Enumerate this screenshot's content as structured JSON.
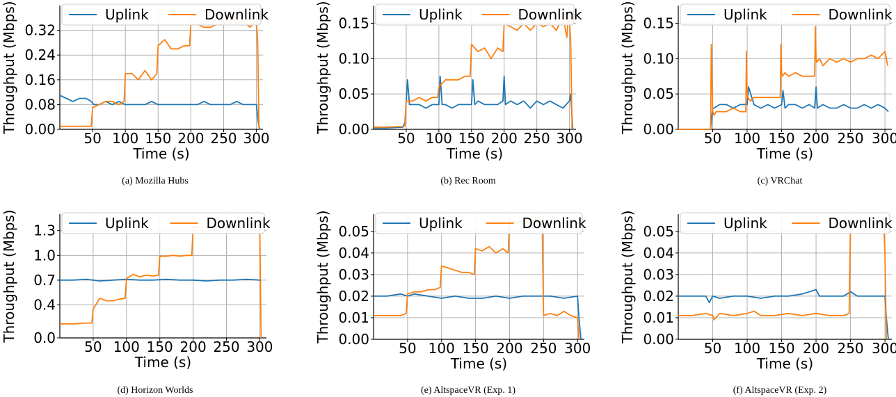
{
  "figure": {
    "colors": {
      "uplink": "#1f77b4",
      "downlink": "#ff7f0e",
      "grid": "#b0b0b0"
    }
  },
  "chart_data": [
    {
      "type": "line",
      "caption": "(a) Mozilla Hubs",
      "xlabel": "Time (s)",
      "ylabel": "Throughput (Mbps)",
      "xlim": [
        0,
        310
      ],
      "ylim": [
        0,
        0.4
      ],
      "xticks": [
        "50",
        "100",
        "150",
        "200",
        "250",
        "300"
      ],
      "xtick_values": [
        50,
        100,
        150,
        200,
        250,
        300
      ],
      "yticks": [
        "0.00",
        "0.08",
        "0.16",
        "0.24",
        "0.32"
      ],
      "ytick_values": [
        0,
        0.08,
        0.16,
        0.24,
        0.32
      ],
      "grid": true,
      "legend": "top",
      "series": [
        {
          "name": "Uplink",
          "key": "uplink",
          "x": [
            0,
            10,
            20,
            30,
            40,
            48,
            52,
            60,
            70,
            80,
            90,
            100,
            110,
            120,
            130,
            140,
            150,
            160,
            170,
            180,
            190,
            200,
            210,
            220,
            230,
            240,
            250,
            260,
            270,
            280,
            290,
            300,
            303,
            305
          ],
          "y": [
            0.11,
            0.1,
            0.09,
            0.1,
            0.1,
            0.09,
            0.08,
            0.08,
            0.09,
            0.08,
            0.09,
            0.08,
            0.08,
            0.08,
            0.08,
            0.09,
            0.08,
            0.08,
            0.08,
            0.08,
            0.08,
            0.08,
            0.08,
            0.09,
            0.08,
            0.08,
            0.08,
            0.08,
            0.09,
            0.08,
            0.08,
            0.08,
            0.02,
            0.0
          ]
        },
        {
          "name": "Downlink",
          "key": "downlink",
          "x": [
            0,
            20,
            40,
            48,
            50,
            60,
            70,
            80,
            90,
            98,
            100,
            110,
            120,
            130,
            140,
            148,
            150,
            160,
            170,
            180,
            190,
            198,
            200,
            210,
            220,
            230,
            240,
            250,
            260,
            270,
            280,
            290,
            300,
            302,
            304
          ],
          "y": [
            0.01,
            0.01,
            0.01,
            0.01,
            0.07,
            0.08,
            0.09,
            0.09,
            0.08,
            0.09,
            0.18,
            0.18,
            0.16,
            0.19,
            0.16,
            0.18,
            0.27,
            0.29,
            0.26,
            0.26,
            0.27,
            0.27,
            0.34,
            0.34,
            0.33,
            0.33,
            0.34,
            0.34,
            0.37,
            0.34,
            0.35,
            0.33,
            0.35,
            0.28,
            0.0
          ]
        }
      ]
    },
    {
      "type": "line",
      "caption": "(b) Rec Room",
      "xlabel": "Time (s)",
      "ylabel": "Throughput (Mbps)",
      "xlim": [
        0,
        310
      ],
      "ylim": [
        0,
        0.175
      ],
      "xticks": [
        "50",
        "100",
        "150",
        "200",
        "250",
        "300"
      ],
      "xtick_values": [
        50,
        100,
        150,
        200,
        250,
        300
      ],
      "yticks": [
        "0.00",
        "0.05",
        "0.10",
        "0.15"
      ],
      "ytick_values": [
        0,
        0.05,
        0.1,
        0.15
      ],
      "grid": true,
      "legend": "top",
      "series": [
        {
          "name": "Uplink",
          "key": "uplink",
          "x": [
            0,
            20,
            45,
            48,
            50,
            52,
            55,
            60,
            70,
            80,
            90,
            100,
            102,
            105,
            110,
            120,
            130,
            140,
            150,
            152,
            155,
            160,
            170,
            180,
            190,
            198,
            200,
            202,
            210,
            220,
            230,
            240,
            250,
            260,
            270,
            280,
            290,
            300,
            302,
            305
          ],
          "y": [
            0.002,
            0.002,
            0.003,
            0.01,
            0.04,
            0.07,
            0.035,
            0.035,
            0.035,
            0.03,
            0.035,
            0.035,
            0.075,
            0.035,
            0.035,
            0.03,
            0.035,
            0.035,
            0.035,
            0.07,
            0.035,
            0.04,
            0.035,
            0.035,
            0.035,
            0.04,
            0.075,
            0.035,
            0.04,
            0.035,
            0.04,
            0.03,
            0.04,
            0.035,
            0.04,
            0.035,
            0.03,
            0.04,
            0.05,
            0.0
          ]
        },
        {
          "name": "Downlink",
          "key": "downlink",
          "x": [
            0,
            20,
            45,
            48,
            50,
            60,
            70,
            80,
            90,
            98,
            100,
            110,
            120,
            130,
            140,
            148,
            150,
            160,
            170,
            180,
            190,
            198,
            200,
            210,
            220,
            230,
            240,
            250,
            260,
            270,
            280,
            290,
            296,
            298,
            300,
            302,
            304
          ],
          "y": [
            0.003,
            0.003,
            0.004,
            0.005,
            0.04,
            0.04,
            0.045,
            0.04,
            0.045,
            0.045,
            0.06,
            0.07,
            0.07,
            0.07,
            0.075,
            0.075,
            0.12,
            0.11,
            0.115,
            0.1,
            0.115,
            0.11,
            0.15,
            0.145,
            0.14,
            0.15,
            0.14,
            0.15,
            0.145,
            0.15,
            0.14,
            0.16,
            0.13,
            0.16,
            0.155,
            0.12,
            0.0
          ]
        }
      ]
    },
    {
      "type": "line",
      "caption": "(c) VRChat",
      "xlabel": "Time (s)",
      "ylabel": "Throughput (Mbps)",
      "xlim": [
        0,
        310
      ],
      "ylim": [
        0,
        0.175
      ],
      "xticks": [
        "50",
        "100",
        "150",
        "200",
        "250",
        "300"
      ],
      "xtick_values": [
        50,
        100,
        150,
        200,
        250,
        300
      ],
      "yticks": [
        "0.00",
        "0.05",
        "0.10",
        "0.15"
      ],
      "ytick_values": [
        0,
        0.05,
        0.1,
        0.15
      ],
      "grid": true,
      "legend": "top",
      "series": [
        {
          "name": "Uplink",
          "key": "uplink",
          "x": [
            0,
            20,
            40,
            47,
            50,
            52,
            60,
            70,
            80,
            90,
            100,
            102,
            110,
            120,
            130,
            140,
            150,
            152,
            155,
            160,
            170,
            180,
            190,
            198,
            200,
            202,
            210,
            220,
            230,
            240,
            250,
            260,
            270,
            280,
            290,
            300,
            305
          ],
          "y": [
            0.0,
            0.0,
            0.0,
            0.0,
            0.03,
            0.03,
            0.035,
            0.035,
            0.03,
            0.035,
            0.035,
            0.06,
            0.035,
            0.03,
            0.035,
            0.03,
            0.035,
            0.055,
            0.03,
            0.035,
            0.035,
            0.03,
            0.035,
            0.03,
            0.06,
            0.03,
            0.035,
            0.03,
            0.03,
            0.035,
            0.03,
            0.03,
            0.035,
            0.03,
            0.035,
            0.03,
            0.025
          ]
        },
        {
          "name": "Downlink",
          "key": "downlink",
          "x": [
            0,
            20,
            40,
            47,
            48,
            50,
            52,
            55,
            60,
            70,
            80,
            90,
            98,
            99,
            100,
            101,
            105,
            110,
            120,
            130,
            140,
            148,
            149,
            150,
            151,
            155,
            160,
            170,
            180,
            190,
            198,
            199,
            200,
            201,
            205,
            210,
            220,
            230,
            240,
            250,
            260,
            270,
            280,
            290,
            300,
            304
          ],
          "y": [
            0.0,
            0.0,
            0.0,
            0.0,
            0.12,
            0.025,
            0.02,
            0.025,
            0.025,
            0.025,
            0.03,
            0.025,
            0.025,
            0.11,
            0.05,
            0.045,
            0.04,
            0.045,
            0.045,
            0.045,
            0.045,
            0.045,
            0.12,
            0.08,
            0.075,
            0.08,
            0.075,
            0.08,
            0.075,
            0.075,
            0.075,
            0.145,
            0.1,
            0.095,
            0.1,
            0.09,
            0.1,
            0.095,
            0.1,
            0.095,
            0.1,
            0.1,
            0.105,
            0.1,
            0.11,
            0.09
          ]
        }
      ]
    },
    {
      "type": "line",
      "caption": "(d) Horizon Worlds",
      "xlabel": "Time (s)",
      "ylabel": "Throughput (Mbps)",
      "xlim": [
        0,
        310
      ],
      "ylim": [
        0,
        1.5
      ],
      "xticks": [
        "50",
        "100",
        "150",
        "200",
        "250",
        "300"
      ],
      "xtick_values": [
        50,
        100,
        150,
        200,
        250,
        300
      ],
      "yticks": [
        "0.0",
        "0.4",
        "0.7",
        "1.0",
        "1.3"
      ],
      "ytick_values": [
        0,
        0.4,
        0.7,
        1.0,
        1.3
      ],
      "grid": true,
      "legend": "top",
      "series": [
        {
          "name": "Uplink",
          "key": "uplink",
          "x": [
            0,
            20,
            40,
            60,
            80,
            100,
            120,
            140,
            160,
            180,
            200,
            220,
            240,
            260,
            280,
            300,
            302
          ],
          "y": [
            0.7,
            0.7,
            0.71,
            0.69,
            0.7,
            0.71,
            0.7,
            0.7,
            0.71,
            0.7,
            0.7,
            0.69,
            0.7,
            0.7,
            0.71,
            0.7,
            0.68
          ]
        },
        {
          "name": "Downlink",
          "key": "downlink",
          "x": [
            0,
            20,
            40,
            48,
            50,
            60,
            70,
            80,
            90,
            98,
            100,
            110,
            120,
            130,
            140,
            148,
            150,
            160,
            170,
            180,
            190,
            198,
            200,
            210,
            220,
            230,
            240,
            250,
            260,
            270,
            280,
            290,
            298,
            300,
            302
          ],
          "y": [
            0.17,
            0.17,
            0.18,
            0.18,
            0.35,
            0.48,
            0.45,
            0.45,
            0.47,
            0.48,
            0.72,
            0.77,
            0.74,
            0.76,
            0.75,
            0.76,
            0.99,
            0.99,
            1.0,
            0.99,
            1.0,
            1.0,
            1.34,
            1.34,
            1.35,
            1.35,
            1.36,
            1.35,
            1.35,
            1.36,
            1.37,
            1.36,
            1.37,
            1.35,
            0.0
          ]
        }
      ]
    },
    {
      "type": "line",
      "caption": "(e) AltspaceVR (Exp. 1)",
      "xlabel": "Time (s)",
      "ylabel": "Throughput (Mbps)",
      "xlim": [
        0,
        310
      ],
      "ylim": [
        0,
        0.058
      ],
      "xticks": [
        "50",
        "100",
        "150",
        "200",
        "250",
        "300"
      ],
      "xtick_values": [
        50,
        100,
        150,
        200,
        250,
        300
      ],
      "yticks": [
        "0.00",
        "0.01",
        "0.02",
        "0.03",
        "0.04",
        "0.05"
      ],
      "ytick_values": [
        0,
        0.01,
        0.02,
        0.03,
        0.04,
        0.05
      ],
      "grid": true,
      "legend": "top",
      "series": [
        {
          "name": "Uplink",
          "key": "uplink",
          "x": [
            0,
            20,
            40,
            50,
            60,
            80,
            100,
            120,
            140,
            160,
            180,
            200,
            220,
            240,
            260,
            280,
            300,
            302,
            305
          ],
          "y": [
            0.02,
            0.02,
            0.021,
            0.02,
            0.021,
            0.02,
            0.019,
            0.02,
            0.019,
            0.019,
            0.02,
            0.019,
            0.02,
            0.02,
            0.02,
            0.019,
            0.02,
            0.01,
            0.0
          ]
        },
        {
          "name": "Downlink",
          "key": "downlink",
          "x": [
            0,
            20,
            40,
            48,
            50,
            60,
            70,
            80,
            90,
            98,
            100,
            110,
            120,
            130,
            140,
            148,
            150,
            160,
            170,
            180,
            190,
            198,
            200,
            210,
            220,
            230,
            240,
            248,
            250,
            260,
            270,
            280,
            290,
            300,
            302
          ],
          "y": [
            0.011,
            0.011,
            0.011,
            0.012,
            0.021,
            0.022,
            0.022,
            0.023,
            0.023,
            0.024,
            0.034,
            0.033,
            0.032,
            0.031,
            0.031,
            0.03,
            0.042,
            0.041,
            0.043,
            0.04,
            0.042,
            0.04,
            0.055,
            0.054,
            0.055,
            0.054,
            0.056,
            0.053,
            0.011,
            0.012,
            0.011,
            0.013,
            0.011,
            0.01,
            0.0
          ]
        }
      ]
    },
    {
      "type": "line",
      "caption": "(f) AltspaceVR (Exp. 2)",
      "xlabel": "Time (s)",
      "ylabel": "Throughput (Mbps)",
      "xlim": [
        0,
        310
      ],
      "ylim": [
        0,
        0.058
      ],
      "xticks": [
        "50",
        "100",
        "150",
        "200",
        "250",
        "300"
      ],
      "xtick_values": [
        50,
        100,
        150,
        200,
        250,
        300
      ],
      "yticks": [
        "0.00",
        "0.01",
        "0.02",
        "0.03",
        "0.04",
        "0.05"
      ],
      "ytick_values": [
        0,
        0.01,
        0.02,
        0.03,
        0.04,
        0.05
      ],
      "grid": true,
      "legend": "top",
      "series": [
        {
          "name": "Uplink",
          "key": "uplink",
          "x": [
            0,
            20,
            40,
            45,
            50,
            60,
            80,
            100,
            120,
            140,
            160,
            180,
            200,
            205,
            220,
            240,
            250,
            260,
            280,
            300,
            302,
            305
          ],
          "y": [
            0.02,
            0.02,
            0.02,
            0.017,
            0.02,
            0.019,
            0.02,
            0.02,
            0.019,
            0.02,
            0.02,
            0.021,
            0.023,
            0.02,
            0.02,
            0.02,
            0.022,
            0.02,
            0.02,
            0.02,
            0.01,
            0.0
          ]
        },
        {
          "name": "Downlink",
          "key": "downlink",
          "x": [
            0,
            20,
            40,
            50,
            52,
            60,
            80,
            100,
            110,
            120,
            140,
            160,
            180,
            200,
            220,
            240,
            248,
            250,
            260,
            270,
            280,
            290,
            298,
            300,
            302
          ],
          "y": [
            0.011,
            0.011,
            0.012,
            0.011,
            0.009,
            0.012,
            0.011,
            0.012,
            0.013,
            0.011,
            0.011,
            0.012,
            0.011,
            0.012,
            0.011,
            0.011,
            0.012,
            0.053,
            0.055,
            0.054,
            0.055,
            0.053,
            0.056,
            0.04,
            0.0
          ]
        }
      ]
    }
  ]
}
